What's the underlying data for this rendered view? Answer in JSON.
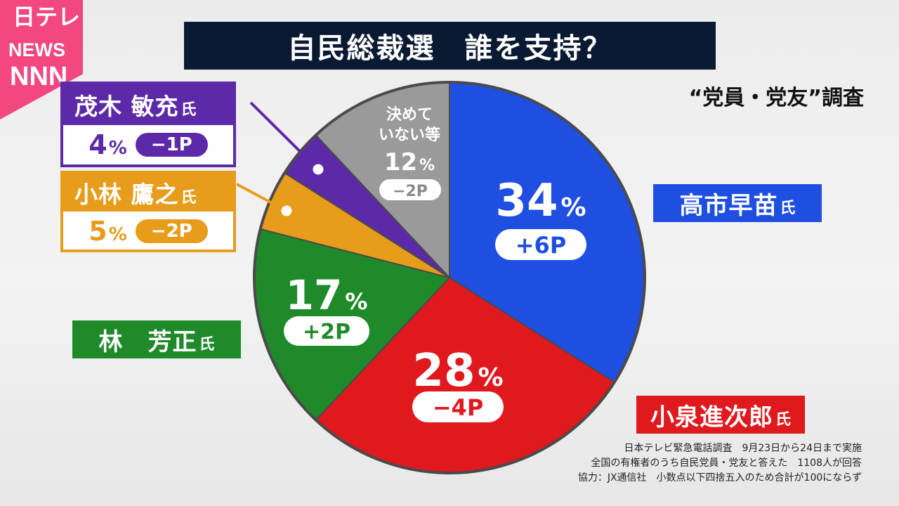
{
  "logo": {
    "line1": "日テレ",
    "line2": "NEWS",
    "line3": "NNN"
  },
  "title": "自民総裁選　誰を支持？",
  "subtitle": "“党員・党友”調査",
  "honorific": "氏",
  "colors": {
    "takaichi": "#1f4fe0",
    "koizumi": "#e0191e",
    "hayashi": "#1f8a2a",
    "kobayashi": "#e89c1b",
    "motegi": "#5c2aa8",
    "undecided": "#9a9a9a"
  },
  "chart_data": {
    "type": "pie",
    "start_angle_deg": 0,
    "direction": "clockwise",
    "slices": [
      {
        "key": "takaichi",
        "label": "高市早苗",
        "value": 34,
        "pct_text": "34",
        "change": "+6P"
      },
      {
        "key": "koizumi",
        "label": "小泉進次郎",
        "value": 28,
        "pct_text": "28",
        "change": "−4P"
      },
      {
        "key": "hayashi",
        "label": "林　芳正",
        "value": 17,
        "pct_text": "17",
        "change": "+2P"
      },
      {
        "key": "kobayashi",
        "label": "小林 鷹之",
        "value": 5,
        "pct_text": "5",
        "change": "−2P"
      },
      {
        "key": "motegi",
        "label": "茂木 敏充",
        "value": 4,
        "pct_text": "4",
        "change": "−1P"
      },
      {
        "key": "undecided",
        "label": "決めて\nいない等",
        "value": 12,
        "pct_text": "12",
        "change": "−2P"
      }
    ],
    "unit": "%"
  },
  "labels": {
    "takaichi": "高市早苗",
    "koizumi": "小泉進次郎",
    "hayashi": "林　芳正",
    "kobayashi": "小林 鷹之",
    "motegi": "茂木 敏充"
  },
  "callouts": {
    "motegi": {
      "pct": "4",
      "change": "−1P"
    },
    "kobayashi": {
      "pct": "5",
      "change": "−2P"
    }
  },
  "footnote": [
    "日本テレビ緊急電話調査　9月23日から24日まで実施",
    "全国の有権者のうち自民党員・党友と答えた　1108人が回答",
    "協力：JX通信社　小数点以下四捨五入のため合計が100にならず"
  ]
}
